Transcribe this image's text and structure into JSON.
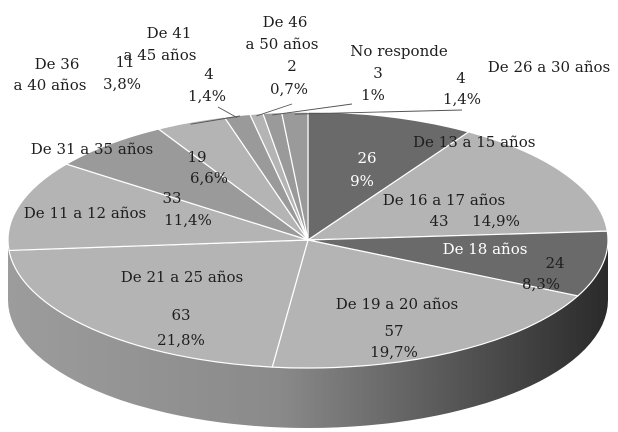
{
  "chart_data": {
    "type": "pie",
    "style": "3d",
    "colors": {
      "top_light": "#b4b4b4",
      "top_mid": "#9a9a9a",
      "top_dark": "#6a6a6a",
      "side_dark": "#2a2a2a",
      "label_text": "#1e1e1e",
      "label_text_inverse": "#ffffff"
    },
    "slices": [
      {
        "id": "s1317",
        "name": "De 13 a 15 años",
        "count_label": "26",
        "pct_label": "9%",
        "value": 9.0
      },
      {
        "id": "s1617",
        "name": "De 16 a 17 años",
        "count_label": "43",
        "pct_label": "14,9%",
        "value": 14.9
      },
      {
        "id": "s18",
        "name": "De 18 años",
        "count_label": "24",
        "pct_label": "8,3%",
        "value": 8.3
      },
      {
        "id": "s1920",
        "name": "De 19 a 20 años",
        "count_label": "57",
        "pct_label": "19,7%",
        "value": 19.7
      },
      {
        "id": "s2125",
        "name": "De 21 a 25 años",
        "count_label": "63",
        "pct_label": "21,8%",
        "value": 21.8
      },
      {
        "id": "s1112",
        "name": "De 11 a 12 años",
        "count_label": "33",
        "pct_label": "11,4%",
        "value": 11.4
      },
      {
        "id": "s3135",
        "name": "De 31 a 35 años",
        "count_label": "19",
        "pct_label": "6,6%",
        "value": 6.6
      },
      {
        "id": "s3640",
        "name_lines": [
          "De 36",
          "a 40 años"
        ],
        "count_label": "11",
        "pct_label": "3,8%",
        "value": 3.8
      },
      {
        "id": "s4145",
        "name_lines": [
          "De 41",
          "a 45 años"
        ],
        "count_label": "4",
        "pct_label": "1,4%",
        "value": 1.4
      },
      {
        "id": "s4650",
        "name_lines": [
          "De 46",
          "a 50 años"
        ],
        "count_label": "2",
        "pct_label": "0,7%",
        "value": 0.7
      },
      {
        "id": "snr",
        "name": "No responde",
        "count_label": "3",
        "pct_label": "1%",
        "value": 1.0
      },
      {
        "id": "s2630",
        "name": "De 26 a 30 años",
        "count_label": "4",
        "pct_label": "1,4%",
        "value": 1.4
      }
    ]
  }
}
